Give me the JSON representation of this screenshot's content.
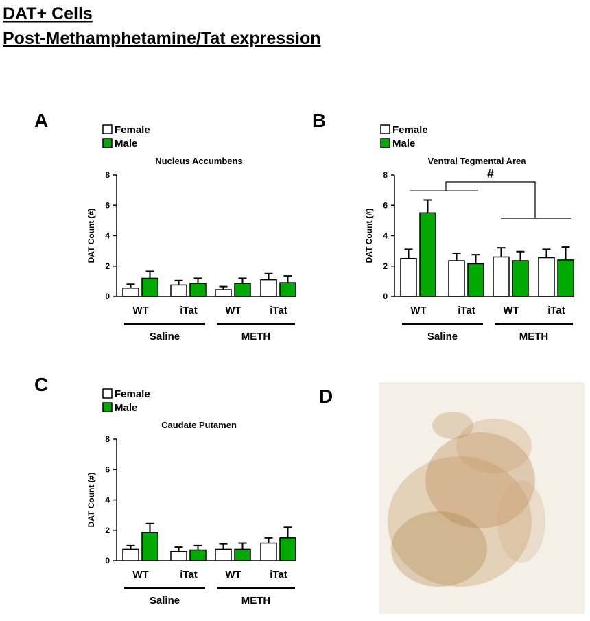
{
  "header": {
    "title": [
      "DAT+ Cells",
      "Post-Methamphetamine/Tat expression"
    ]
  },
  "chart_data": [
    {
      "type": "bar",
      "panel_label": "A",
      "title": "Nucleus Accumbens",
      "y_label": "DAT Count (#)",
      "categories": [
        "WT",
        "iTat",
        "WT",
        "iTat"
      ],
      "groups": [
        "Saline",
        "METH"
      ],
      "series": [
        {
          "name": "Female",
          "color": "#ffffff",
          "values": [
            0.55,
            0.75,
            0.45,
            1.1
          ],
          "errors": [
            0.25,
            0.3,
            0.2,
            0.4
          ]
        },
        {
          "name": "Male",
          "color": "#00aa00",
          "values": [
            1.2,
            0.85,
            0.85,
            0.9
          ],
          "errors": [
            0.45,
            0.35,
            0.35,
            0.45
          ]
        }
      ],
      "ylim": [
        0,
        8
      ],
      "yticks": [
        0,
        2,
        4,
        6,
        8
      ]
    },
    {
      "type": "bar",
      "panel_label": "B",
      "title": "Ventral Tegmental Area",
      "y_label": "DAT Count (#)",
      "annotation": "#",
      "categories": [
        "WT",
        "iTat",
        "WT",
        "iTat"
      ],
      "groups": [
        "Saline",
        "METH"
      ],
      "series": [
        {
          "name": "Female",
          "color": "#ffffff",
          "values": [
            2.5,
            2.35,
            2.6,
            2.55
          ],
          "errors": [
            0.6,
            0.5,
            0.6,
            0.55
          ]
        },
        {
          "name": "Male",
          "color": "#00aa00",
          "values": [
            5.5,
            2.15,
            2.35,
            2.4
          ],
          "errors": [
            0.85,
            0.6,
            0.6,
            0.85
          ]
        }
      ],
      "ylim": [
        0,
        8
      ],
      "yticks": [
        0,
        2,
        4,
        6,
        8
      ]
    },
    {
      "type": "bar",
      "panel_label": "C",
      "title": "Caudate Putamen",
      "y_label": "DAT Count (#)",
      "categories": [
        "WT",
        "iTat",
        "WT",
        "iTat"
      ],
      "groups": [
        "Saline",
        "METH"
      ],
      "series": [
        {
          "name": "Female",
          "color": "#ffffff",
          "values": [
            0.75,
            0.6,
            0.75,
            1.15
          ],
          "errors": [
            0.25,
            0.3,
            0.35,
            0.35
          ]
        },
        {
          "name": "Male",
          "color": "#00aa00",
          "values": [
            1.85,
            0.7,
            0.75,
            1.5
          ],
          "errors": [
            0.6,
            0.3,
            0.4,
            0.7
          ]
        }
      ],
      "ylim": [
        0,
        8
      ],
      "yticks": [
        0,
        2,
        4,
        6,
        8
      ]
    }
  ],
  "image_panel": {
    "label": "D"
  }
}
